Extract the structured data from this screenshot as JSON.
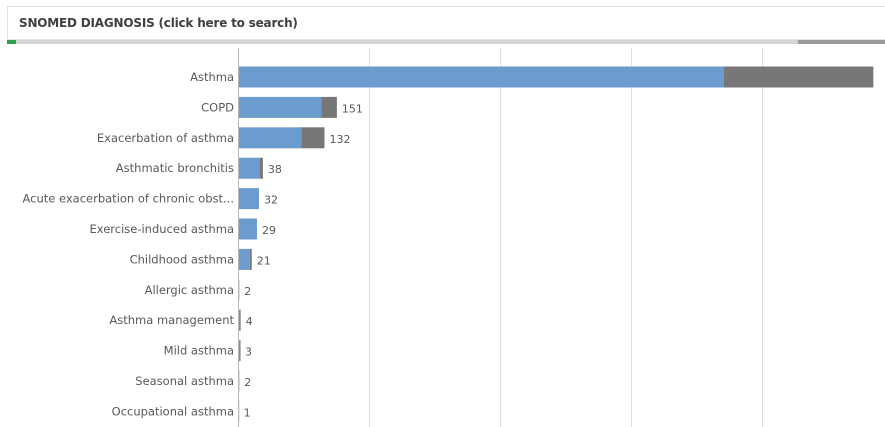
{
  "search_panel": {
    "title": "SNOMED DIAGNOSIS (click here to search)"
  },
  "colors": {
    "selected": "#6c9bce",
    "alternative": "#777777",
    "gridline": "#dedede",
    "axis": "#b8b8b8",
    "label": "#595959"
  },
  "chart_data": {
    "type": "bar",
    "orientation": "horizontal",
    "stacked": true,
    "categories": [
      "Asthma",
      "COPD",
      "Exacerbation of asthma",
      "Asthmatic bronchitis",
      "Acute exacerbation of chronic obst...",
      "Exercise-induced asthma",
      "Childhood asthma",
      "Allergic asthma",
      "Asthma management",
      "Mild asthma",
      "Seasonal asthma",
      "Occupational asthma"
    ],
    "series": [
      {
        "values": [
          742,
          127,
          97,
          33,
          32,
          29,
          18,
          2,
          2,
          2,
          2,
          1
        ]
      },
      {
        "values": [
          228,
          24,
          35,
          5,
          0,
          0,
          3,
          0,
          2,
          1,
          0,
          0
        ]
      }
    ],
    "value_labels": [
      "",
      "151",
      "132",
      "38",
      "32",
      "29",
      "21",
      "2",
      "4",
      "3",
      "2",
      "1"
    ],
    "xlim": [
      0,
      1000
    ],
    "grid": true
  }
}
